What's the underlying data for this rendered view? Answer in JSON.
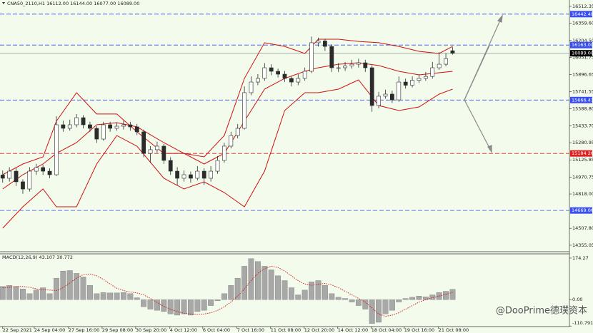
{
  "chart_data": [
    {
      "type": "candlestick",
      "title": "CNA50_2110,H1  16112.00 16144.00 16077.00 16089.00",
      "xlim": [
        -0.4,
        84.4
      ],
      "ylim": [
        14303,
        16570
      ],
      "yticks": [
        16512.35,
        {
          "value": 16359.6,
          "label": "16359.60"
        },
        {
          "value": 16204.5,
          "label": "16204.50"
        },
        16051.75,
        15896.65,
        15741.55,
        {
          "value": 15588.8,
          "label": "15588.80"
        },
        {
          "value": 15433.7,
          "label": "15433.70"
        },
        15280.95,
        15125.85,
        14970.75,
        {
          "value": 14818,
          "label": "14818.00"
        },
        {
          "value": 14507.8,
          "label": "14507.80"
        },
        14355.05
      ],
      "xticks": [
        {
          "value": 0,
          "label": "22 Sep 2021"
        },
        {
          "value": 4.7,
          "label": "24 Sep 04:00"
        },
        {
          "value": 9.8,
          "label": "27 Sep 16:00"
        },
        {
          "value": 14.8,
          "label": "29 Sep 08:00"
        },
        {
          "value": 19.8,
          "label": "30 Sep 20:00"
        },
        {
          "value": 24.9,
          "label": "4 Oct 12:00"
        },
        {
          "value": 29.8,
          "label": "6 Oct 04:00"
        },
        {
          "value": 34.9,
          "label": "7 Oct 16:00"
        },
        {
          "value": 39.9,
          "label": "11 Oct 08:00"
        },
        {
          "value": 44.9,
          "label": "12 Oct 20:00"
        },
        {
          "value": 49.9,
          "label": "14 Oct 12:00"
        },
        {
          "value": 54.9,
          "label": "18 Oct 04:00"
        },
        {
          "value": 59.8,
          "label": "19 Oct 16:00"
        },
        {
          "value": 64.9,
          "label": "21 Oct 08:00"
        }
      ],
      "open": [
        14990,
        14960,
        15024,
        14928,
        14863,
        15024,
        15057,
        15024,
        14992,
        15443,
        15411,
        15443,
        15507,
        15443,
        15411,
        15314,
        15443,
        15411,
        15430,
        15443,
        15424,
        15379,
        15185,
        15218,
        15250,
        15121,
        15024,
        14960,
        14992,
        14960,
        15024,
        14960,
        15024,
        15121,
        15250,
        15346,
        15411,
        15733,
        15829,
        15862,
        15958,
        15926,
        15900,
        15862,
        15829,
        15862,
        15926,
        16184,
        16200,
        16151,
        15958,
        15958,
        15975,
        15990,
        16003,
        15958,
        15617,
        15701,
        15720,
        15668,
        15829,
        15800,
        15845,
        15862,
        15880,
        15958,
        15990,
        16112
      ],
      "high": [
        15030,
        15060,
        15050,
        14950,
        15060,
        15090,
        15080,
        15050,
        15520,
        15480,
        15490,
        15540,
        15530,
        15470,
        15430,
        15470,
        15470,
        15460,
        15480,
        15470,
        15450,
        15400,
        15250,
        15290,
        15270,
        15150,
        15060,
        15030,
        15020,
        15070,
        15050,
        15070,
        15160,
        15280,
        15380,
        15450,
        15790,
        15880,
        15900,
        16000,
        15990,
        15950,
        15930,
        15880,
        15900,
        15960,
        16240,
        16230,
        16220,
        16170,
        16000,
        16010,
        16030,
        16040,
        16030,
        15980,
        15740,
        15760,
        15750,
        15880,
        15860,
        15880,
        15900,
        15920,
        16010,
        16100,
        16090,
        16144
      ],
      "low": [
        14920,
        14930,
        14890,
        14820,
        14840,
        14990,
        14990,
        14960,
        14980,
        15380,
        15390,
        15420,
        15410,
        15380,
        15280,
        15300,
        15380,
        15390,
        15400,
        15390,
        15350,
        15150,
        15100,
        15190,
        15090,
        14990,
        14900,
        14930,
        14920,
        14940,
        14900,
        14930,
        15000,
        15100,
        15230,
        15320,
        15400,
        15710,
        15800,
        15840,
        15890,
        15870,
        15830,
        15790,
        15800,
        15840,
        15910,
        16150,
        16110,
        15920,
        15920,
        15930,
        15950,
        15960,
        15920,
        15560,
        15590,
        15680,
        15640,
        15650,
        15770,
        15780,
        15820,
        15840,
        15860,
        15940,
        15970,
        16077
      ],
      "close": [
        14960,
        15024,
        14928,
        14863,
        15024,
        15057,
        15024,
        14992,
        15443,
        15411,
        15443,
        15507,
        15443,
        15411,
        15314,
        15443,
        15411,
        15430,
        15443,
        15424,
        15379,
        15185,
        15218,
        15250,
        15121,
        15024,
        14960,
        14992,
        14960,
        15024,
        14960,
        15024,
        15121,
        15250,
        15346,
        15411,
        15733,
        15829,
        15862,
        15958,
        15926,
        15900,
        15862,
        15829,
        15862,
        15926,
        16184,
        16200,
        16151,
        15958,
        15958,
        15975,
        15990,
        16003,
        15958,
        15617,
        15701,
        15720,
        15668,
        15829,
        15800,
        15845,
        15862,
        15880,
        15958,
        15990,
        16040,
        16089
      ],
      "up_color": "#ffffff",
      "down_color": "#2b2b2b",
      "bands": {
        "color": "#d01010",
        "x": [
          0,
          3,
          6,
          8,
          11,
          14,
          17,
          20,
          24,
          27,
          30,
          33,
          36,
          39,
          42,
          45,
          47,
          50,
          53,
          56,
          59,
          62,
          65,
          67
        ],
        "upper": [
          14992,
          15089,
          15153,
          15475,
          15733,
          15540,
          15540,
          15379,
          15185,
          15185,
          15153,
          15346,
          15862,
          16184,
          16151,
          16087,
          16216,
          16216,
          16196,
          16184,
          16151,
          16106,
          16087,
          16151
        ],
        "middle": [
          14863,
          14992,
          15089,
          15185,
          15282,
          15443,
          15462,
          15424,
          15282,
          15185,
          15089,
          15185,
          15475,
          15765,
          15862,
          15926,
          15958,
          15990,
          16003,
          15978,
          15926,
          15894,
          15913,
          15926
        ],
        "lower": [
          14509,
          14702,
          14863,
          14702,
          14702,
          15089,
          15346,
          15250,
          14960,
          14863,
          14928,
          14831,
          14702,
          15024,
          15572,
          15733,
          15733,
          15765,
          15849,
          15617,
          15572,
          15604,
          15720,
          15765
        ]
      },
      "levels": [
        {
          "price": 16442.48,
          "color": "#3a4ff0"
        },
        {
          "price": {
            "value": 16163,
            "label": "16163.00"
          },
          "color": "#3a4ff0"
        },
        {
          "price": {
            "value": 16089,
            "label": "16089.00"
          },
          "color": "#000000"
        },
        {
          "price": 15666.41,
          "color": "#3a4ff0"
        },
        {
          "price": 15184.26,
          "color": "#e02020"
        },
        {
          "price": 14669.06,
          "color": "#3a4ff0"
        }
      ],
      "watermark": "@DooPrime德璞资本"
    },
    {
      "type": "macd",
      "title": "MACD(12,26,9) 43.107 30.772",
      "ylim": [
        -113,
        192
      ],
      "yticks": [
        174.27,
        {
          "value": 0,
          "label": "0.00"
        },
        -110.791
      ],
      "values": [
        55,
        60,
        55,
        45,
        25,
        40,
        50,
        25,
        90,
        120,
        122,
        110,
        95,
        60,
        25,
        30,
        28,
        28,
        30,
        25,
        8,
        -30,
        -40,
        -45,
        -50,
        -60,
        -65,
        -60,
        -65,
        -50,
        -45,
        -25,
        -5,
        25,
        60,
        90,
        140,
        172,
        160,
        140,
        125,
        100,
        80,
        50,
        20,
        40,
        75,
        80,
        60,
        25,
        10,
        5,
        -10,
        -25,
        -40,
        -100,
        -95,
        -60,
        -45,
        -10,
        5,
        10,
        15,
        12,
        20,
        30,
        35,
        43.107
      ],
      "signal": [
        50,
        52,
        55,
        55,
        52,
        45,
        42,
        40,
        38,
        50,
        70,
        90,
        105,
        108,
        100,
        85,
        65,
        48,
        38,
        32,
        28,
        20,
        5,
        -12,
        -28,
        -40,
        -50,
        -57,
        -60,
        -62,
        -60,
        -55,
        -45,
        -30,
        -10,
        15,
        45,
        80,
        110,
        130,
        140,
        135,
        120,
        100,
        80,
        65,
        60,
        65,
        68,
        62,
        50,
        35,
        20,
        5,
        -10,
        -35,
        -60,
        -70,
        -65,
        -55,
        -40,
        -25,
        -10,
        0,
        8,
        15,
        22,
        30.772
      ],
      "color": "#a8a8a8",
      "signal_color": "#d01010"
    }
  ]
}
